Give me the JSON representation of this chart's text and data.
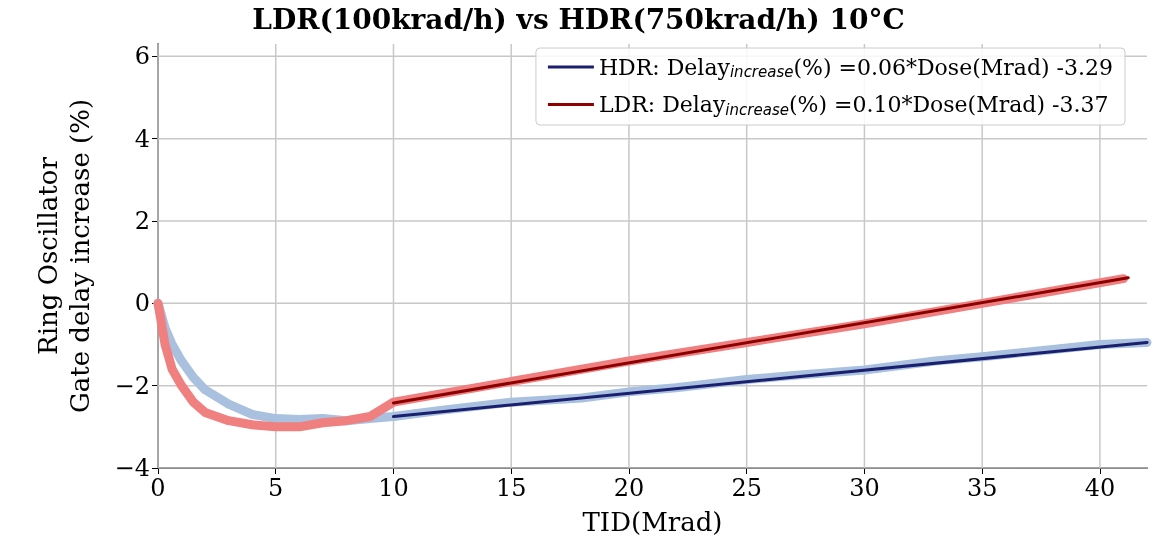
{
  "chart_data": {
    "type": "line",
    "title": "LDR(100krad/h) vs HDR(750krad/h) 10°C",
    "xlabel": "TID(Mrad)",
    "ylabel": "Ring Oscillator\nGate delay increase (%)",
    "xlim": [
      0,
      42
    ],
    "xticks": [
      0,
      5,
      10,
      15,
      20,
      25,
      30,
      35,
      40
    ],
    "ylim": [
      -4,
      6.3
    ],
    "yticks": [
      {
        "value": -4,
        "label": "−4"
      },
      {
        "value": -2,
        "label": "−2"
      },
      0,
      2,
      4,
      6
    ],
    "grid": true,
    "legend": "top right",
    "marker": "none",
    "line_style": "solid",
    "series": [
      {
        "color": "#a9c0de",
        "x": [
          0,
          0.3,
          0.6,
          1,
          1.5,
          2,
          3,
          4,
          5,
          6,
          7,
          8,
          9,
          10,
          12,
          15,
          18,
          20,
          22,
          25,
          27,
          30,
          33,
          35,
          38,
          40,
          42
        ],
        "values": [
          0,
          -0.6,
          -1.0,
          -1.4,
          -1.8,
          -2.1,
          -2.45,
          -2.7,
          -2.8,
          -2.82,
          -2.8,
          -2.85,
          -2.8,
          -2.75,
          -2.6,
          -2.4,
          -2.3,
          -2.15,
          -2.05,
          -1.85,
          -1.75,
          -1.62,
          -1.4,
          -1.3,
          -1.12,
          -1.0,
          -0.95
        ]
      },
      {
        "color": "#f08080",
        "x": [
          0,
          0.3,
          0.6,
          1,
          1.5,
          2,
          3,
          4,
          5,
          6,
          7,
          8,
          9,
          10,
          12,
          15,
          20,
          25,
          30,
          35,
          38,
          41
        ],
        "values": [
          0,
          -1.0,
          -1.6,
          -2.0,
          -2.4,
          -2.65,
          -2.85,
          -2.95,
          -3.0,
          -3.0,
          -2.9,
          -2.85,
          -2.75,
          -2.4,
          -2.2,
          -1.9,
          -1.4,
          -0.95,
          -0.5,
          0.0,
          0.3,
          0.6
        ]
      },
      {
        "name": "HDR: Delay$_{increase}$(%) =0.06*Dose(Mrad) -3.29",
        "color": "#1a1f6e",
        "x": [
          10,
          42
        ],
        "values": [
          -2.75,
          -0.95
        ]
      },
      {
        "name": "LDR: Delay$_{increase}$(%) =0.10*Dose(Mrad) -3.37",
        "color": "#8b0000",
        "x": [
          10,
          41.2
        ],
        "values": [
          -2.42,
          0.62
        ]
      }
    ]
  }
}
